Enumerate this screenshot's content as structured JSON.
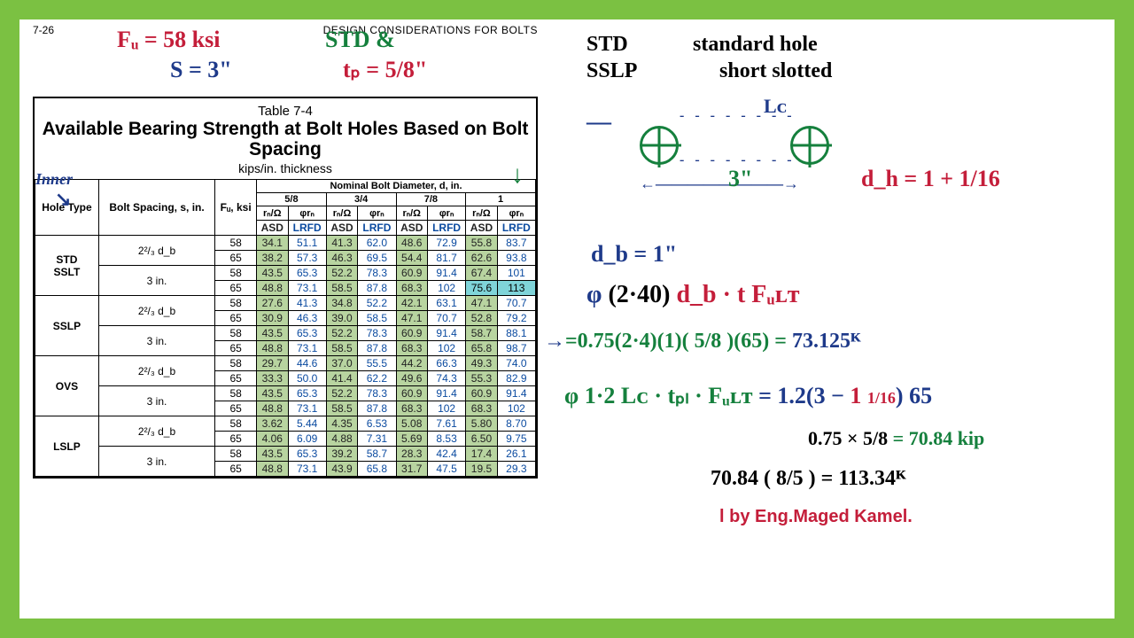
{
  "page_ref": "7-26",
  "page_header": "DESIGN CONSIDERATIONS FOR BOLTS",
  "annotations": {
    "fu": "Fᵤ = 58 ksi",
    "s": "S = 3\"",
    "std": "STD &",
    "tp": "tₚ = 5/8\"",
    "inner": "Inner",
    "down_arrow": "↓",
    "std_def1": "STD",
    "std_def2": "standard hole",
    "sslp_def1": "SSLP",
    "sslp_def2": "short slotted",
    "lc": "Lᴄ",
    "three": "3\"",
    "dh": "d_h = 1 + 1/16",
    "db": "d_b = 1\"",
    "phi": "φ (2·40) d_b · t Fᵤʟᴛ",
    "calc1a": "=0.75(2·4)(1)( 5/8 )(65) =",
    "calc1b": "73.125ᴷ",
    "line2": "φ 1·2 Lᴄ · tₚₗ · Fᵤʟᴛ = 1.2(3 − 1 1/16) 65",
    "line3": "0.75 × 5/8 = 70.84 kip",
    "line4": "70.84 ( 8/5 ) = 113.34ᴷ",
    "arrow": "→"
  },
  "table": {
    "title_small": "Table 7-4",
    "title_main": "Available Bearing Strength at Bolt Holes Based on Bolt Spacing",
    "subtitle": "kips/in. thickness",
    "top_span": "Nominal Bolt Diameter, d, in.",
    "col_hole": "Hole Type",
    "col_spacing": "Bolt Spacing, s, in.",
    "col_fu": "Fᵤ, ksi",
    "dia": [
      "5/8",
      "3/4",
      "7/8",
      "1"
    ],
    "sub": [
      "rₙ/Ω",
      "φrₙ"
    ],
    "method": [
      "ASD",
      "LRFD"
    ],
    "groups": [
      {
        "label": "STD SSLT",
        "rows": [
          {
            "sp": "2²/₃ d_b",
            "fu": [
              "58",
              "65"
            ],
            "v": [
              [
                "34.1",
                "51.1",
                "41.3",
                "62.0",
                "48.6",
                "72.9",
                "55.8",
                "83.7"
              ],
              [
                "38.2",
                "57.3",
                "46.3",
                "69.5",
                "54.4",
                "81.7",
                "62.6",
                "93.8"
              ]
            ]
          },
          {
            "sp": "3 in.",
            "fu": [
              "58",
              "65"
            ],
            "v": [
              [
                "43.5",
                "65.3",
                "52.2",
                "78.3",
                "60.9",
                "91.4",
                "67.4",
                "101"
              ],
              [
                "48.8",
                "73.1",
                "58.5",
                "87.8",
                "68.3",
                "102",
                "75.6",
                "113"
              ]
            ],
            "hl": [
              6,
              7
            ]
          }
        ]
      },
      {
        "label": "SSLP",
        "rows": [
          {
            "sp": "2²/₃ d_b",
            "fu": [
              "58",
              "65"
            ],
            "v": [
              [
                "27.6",
                "41.3",
                "34.8",
                "52.2",
                "42.1",
                "63.1",
                "47.1",
                "70.7"
              ],
              [
                "30.9",
                "46.3",
                "39.0",
                "58.5",
                "47.1",
                "70.7",
                "52.8",
                "79.2"
              ]
            ]
          },
          {
            "sp": "3 in.",
            "fu": [
              "58",
              "65"
            ],
            "v": [
              [
                "43.5",
                "65.3",
                "52.2",
                "78.3",
                "60.9",
                "91.4",
                "58.7",
                "88.1"
              ],
              [
                "48.8",
                "73.1",
                "58.5",
                "87.8",
                "68.3",
                "102",
                "65.8",
                "98.7"
              ]
            ]
          }
        ]
      },
      {
        "label": "OVS",
        "rows": [
          {
            "sp": "2²/₃ d_b",
            "fu": [
              "58",
              "65"
            ],
            "v": [
              [
                "29.7",
                "44.6",
                "37.0",
                "55.5",
                "44.2",
                "66.3",
                "49.3",
                "74.0"
              ],
              [
                "33.3",
                "50.0",
                "41.4",
                "62.2",
                "49.6",
                "74.3",
                "55.3",
                "82.9"
              ]
            ]
          },
          {
            "sp": "3 in.",
            "fu": [
              "58",
              "65"
            ],
            "v": [
              [
                "43.5",
                "65.3",
                "52.2",
                "78.3",
                "60.9",
                "91.4",
                "60.9",
                "91.4"
              ],
              [
                "48.8",
                "73.1",
                "58.5",
                "87.8",
                "68.3",
                "102",
                "68.3",
                "102"
              ]
            ]
          }
        ]
      },
      {
        "label": "LSLP",
        "rows": [
          {
            "sp": "2²/₃ d_b",
            "fu": [
              "58",
              "65"
            ],
            "v": [
              [
                "3.62",
                "5.44",
                "4.35",
                "6.53",
                "5.08",
                "7.61",
                "5.80",
                "8.70"
              ],
              [
                "4.06",
                "6.09",
                "4.88",
                "7.31",
                "5.69",
                "8.53",
                "6.50",
                "9.75"
              ]
            ]
          },
          {
            "sp": "3 in.",
            "fu": [
              "58",
              "65"
            ],
            "v": [
              [
                "43.5",
                "65.3",
                "39.2",
                "58.7",
                "28.3",
                "42.4",
                "17.4",
                "26.1"
              ],
              [
                "48.8",
                "73.1",
                "43.9",
                "65.8",
                "31.7",
                "47.5",
                "19.5",
                "29.3"
              ]
            ]
          }
        ]
      }
    ]
  },
  "credit": "l by Eng.Maged Kamel."
}
